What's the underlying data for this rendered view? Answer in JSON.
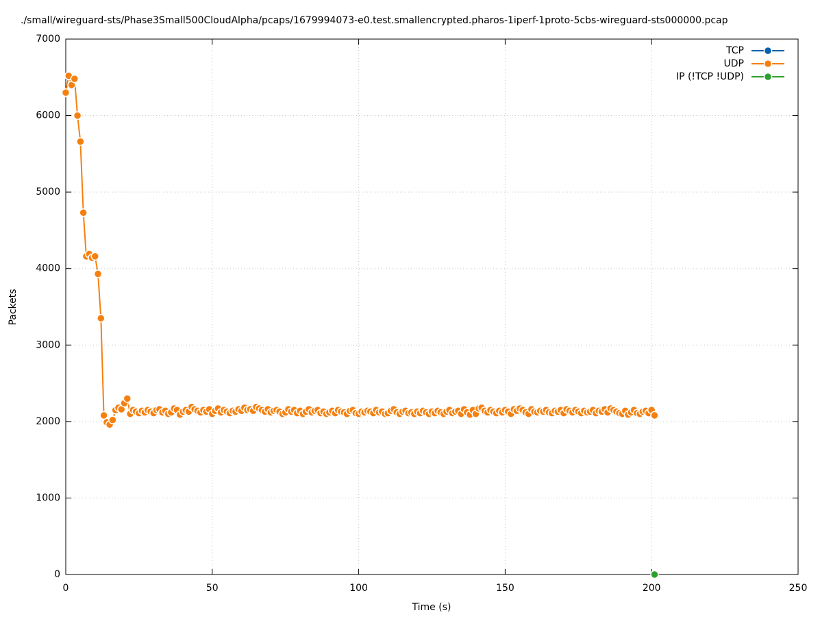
{
  "chart_data": {
    "type": "line",
    "title": "./small/wireguard-sts/Phase3Small500CloudAlpha/pcaps/1679994073-e0.test.smallencrypted.pharos-1iperf-1proto-5cbs-wireguard-sts000000.pcap",
    "x_label": "Time (s)",
    "y_label": "Packets",
    "xlim": [
      0,
      250
    ],
    "xticks": [
      0,
      50,
      100,
      150,
      200,
      250
    ],
    "ylim": [
      0,
      7000
    ],
    "yticks": [
      0,
      1000,
      2000,
      3000,
      4000,
      5000,
      6000,
      7000
    ],
    "grid": true,
    "legend": "top-right",
    "series": [
      {
        "name": "TCP",
        "color": "#0060ad",
        "x": [],
        "values": []
      },
      {
        "name": "UDP",
        "color": "#f58010",
        "x": [
          0,
          1,
          2,
          3,
          4,
          5,
          6,
          7,
          8,
          9,
          10,
          11,
          12,
          13,
          14,
          15,
          16,
          17,
          18,
          19,
          20,
          21,
          22,
          23,
          24,
          25,
          26,
          27,
          28,
          29,
          30,
          31,
          32,
          33,
          34,
          35,
          36,
          37,
          38,
          39,
          40,
          41,
          42,
          43,
          44,
          45,
          46,
          47,
          48,
          49,
          50,
          51,
          52,
          53,
          54,
          55,
          56,
          57,
          58,
          59,
          60,
          61,
          62,
          63,
          64,
          65,
          66,
          67,
          68,
          69,
          70,
          71,
          72,
          73,
          74,
          75,
          76,
          77,
          78,
          79,
          80,
          81,
          82,
          83,
          84,
          85,
          86,
          87,
          88,
          89,
          90,
          91,
          92,
          93,
          94,
          95,
          96,
          97,
          98,
          99,
          100,
          101,
          102,
          103,
          104,
          105,
          106,
          107,
          108,
          109,
          110,
          111,
          112,
          113,
          114,
          115,
          116,
          117,
          118,
          119,
          120,
          121,
          122,
          123,
          124,
          125,
          126,
          127,
          128,
          129,
          130,
          131,
          132,
          133,
          134,
          135,
          136,
          137,
          138,
          139,
          140,
          141,
          142,
          143,
          144,
          145,
          146,
          147,
          148,
          149,
          150,
          151,
          152,
          153,
          154,
          155,
          156,
          157,
          158,
          159,
          160,
          161,
          162,
          163,
          164,
          165,
          166,
          167,
          168,
          169,
          170,
          171,
          172,
          173,
          174,
          175,
          176,
          177,
          178,
          179,
          180,
          181,
          182,
          183,
          184,
          185,
          186,
          187,
          188,
          189,
          190,
          191,
          192,
          193,
          194,
          195,
          196,
          197,
          198,
          199,
          200,
          201
        ],
        "values": [
          6300,
          6520,
          6400,
          6480,
          6000,
          5660,
          4730,
          4160,
          4190,
          4140,
          4160,
          3930,
          3350,
          2080,
          1990,
          1960,
          2020,
          2150,
          2180,
          2160,
          2240,
          2300,
          2100,
          2150,
          2130,
          2110,
          2140,
          2120,
          2150,
          2130,
          2110,
          2150,
          2160,
          2120,
          2140,
          2100,
          2120,
          2170,
          2150,
          2090,
          2130,
          2150,
          2130,
          2190,
          2160,
          2140,
          2120,
          2150,
          2130,
          2160,
          2100,
          2140,
          2170,
          2120,
          2150,
          2130,
          2110,
          2140,
          2130,
          2160,
          2140,
          2180,
          2150,
          2160,
          2140,
          2190,
          2170,
          2150,
          2130,
          2160,
          2120,
          2140,
          2150,
          2130,
          2100,
          2120,
          2160,
          2130,
          2150,
          2110,
          2140,
          2100,
          2130,
          2160,
          2120,
          2140,
          2150,
          2110,
          2130,
          2100,
          2120,
          2140,
          2110,
          2150,
          2130,
          2120,
          2100,
          2140,
          2150,
          2110,
          2100,
          2130,
          2120,
          2140,
          2130,
          2110,
          2150,
          2120,
          2130,
          2100,
          2110,
          2140,
          2160,
          2120,
          2100,
          2130,
          2140,
          2110,
          2120,
          2100,
          2130,
          2110,
          2140,
          2120,
          2100,
          2130,
          2110,
          2140,
          2120,
          2100,
          2130,
          2150,
          2110,
          2130,
          2140,
          2100,
          2160,
          2120,
          2090,
          2150,
          2100,
          2170,
          2180,
          2140,
          2120,
          2150,
          2130,
          2110,
          2140,
          2120,
          2150,
          2130,
          2100,
          2160,
          2140,
          2170,
          2150,
          2120,
          2100,
          2160,
          2130,
          2120,
          2140,
          2130,
          2150,
          2120,
          2110,
          2140,
          2130,
          2150,
          2110,
          2160,
          2140,
          2120,
          2150,
          2130,
          2110,
          2140,
          2120,
          2130,
          2150,
          2110,
          2140,
          2130,
          2160,
          2120,
          2170,
          2150,
          2130,
          2110,
          2100,
          2140,
          2090,
          2120,
          2150,
          2110,
          2100,
          2130,
          2140,
          2110,
          2150,
          2080
        ]
      },
      {
        "name": "IP (!TCP  !UDP)",
        "color": "#2ca02c",
        "x": [
          201
        ],
        "values": [
          0
        ]
      }
    ]
  }
}
